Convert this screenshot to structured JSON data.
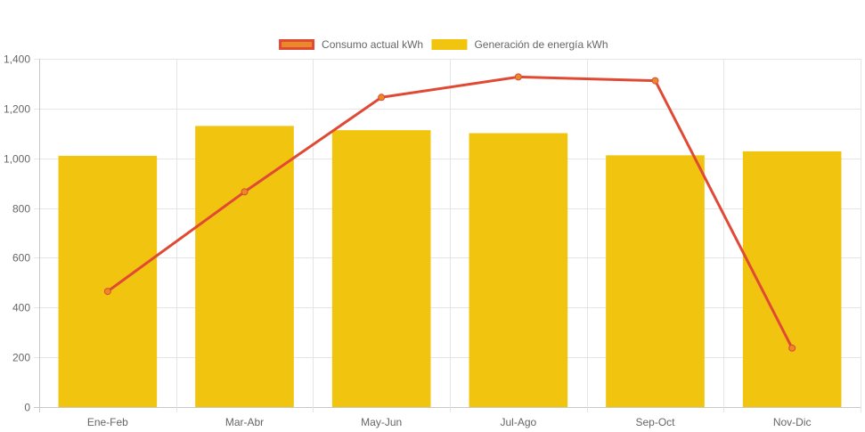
{
  "chart_data": {
    "type": "bar",
    "categories": [
      "Ene-Feb",
      "Mar-Abr",
      "May-Jun",
      "Jul-Ago",
      "Sep-Oct",
      "Nov-Dic"
    ],
    "series": [
      {
        "name": "Consumo actual kWh",
        "type": "line",
        "values": [
          465,
          865,
          1245,
          1327,
          1312,
          237
        ],
        "color": "#e04a35",
        "fill_color": "#e8892a"
      },
      {
        "name": "Generación de energía kWh",
        "type": "bar",
        "values": [
          1010,
          1130,
          1113,
          1101,
          1012,
          1028
        ],
        "color": "#f1c40f"
      }
    ],
    "ylim": [
      0,
      1400
    ],
    "yticks": [
      0,
      200,
      400,
      600,
      800,
      1000,
      1200,
      1400
    ],
    "ytick_labels": [
      "0",
      "200",
      "400",
      "600",
      "800",
      "1,000",
      "1,200",
      "1,400"
    ],
    "legend_position": "top-center",
    "grid": true,
    "title": "",
    "xlabel": "",
    "ylabel": ""
  }
}
